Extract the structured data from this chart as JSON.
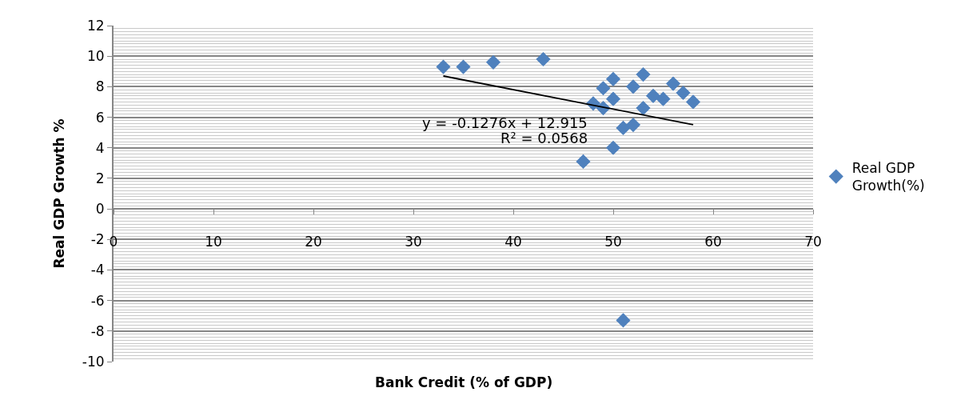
{
  "chart_data": {
    "type": "scatter",
    "xlabel": "Bank Credit (% of GDP)",
    "ylabel": "Real GDP Growth %",
    "xlim": [
      0,
      70
    ],
    "xticks": [
      0,
      10,
      20,
      30,
      40,
      50,
      60,
      70
    ],
    "ylim": [
      -10,
      12
    ],
    "yticks": [
      -10,
      -8,
      -6,
      -4,
      -2,
      0,
      2,
      4,
      6,
      8,
      10,
      12
    ],
    "grid": "y",
    "legend": "right",
    "marker": "diamond",
    "annotations": [
      "y = -0.1276x + 12.915",
      "R² = 0.0568"
    ],
    "series": [
      {
        "name": "Real GDP Growth(%)",
        "color": "#4f81bd",
        "x": [
          33,
          35,
          38,
          43,
          50,
          49,
          48,
          49,
          50,
          53,
          52,
          54,
          55,
          56,
          57,
          58,
          53,
          51,
          52,
          50,
          47,
          51
        ],
        "values": [
          9.3,
          9.3,
          9.6,
          9.8,
          8.5,
          7.9,
          6.9,
          6.6,
          7.2,
          8.8,
          8.0,
          7.4,
          7.2,
          8.2,
          7.6,
          7.0,
          6.6,
          5.3,
          5.5,
          4.0,
          3.1,
          -7.3
        ]
      },
      {
        "color": "#000000",
        "type": "line",
        "marker": "none",
        "x": [
          33,
          58
        ],
        "values": [
          8.7,
          5.51
        ]
      }
    ]
  }
}
